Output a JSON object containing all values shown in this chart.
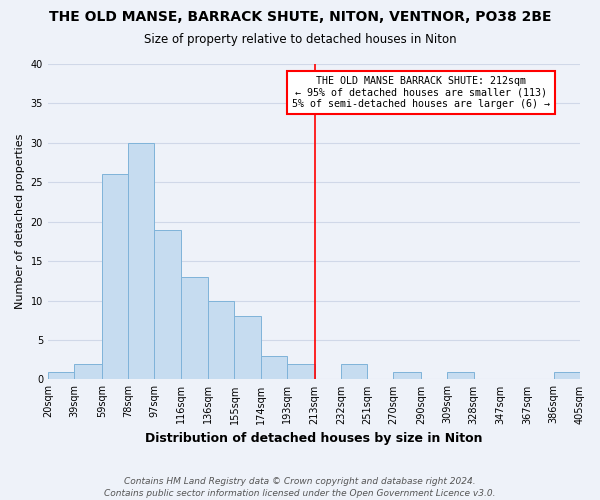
{
  "title": "THE OLD MANSE, BARRACK SHUTE, NITON, VENTNOR, PO38 2BE",
  "subtitle": "Size of property relative to detached houses in Niton",
  "xlabel": "Distribution of detached houses by size in Niton",
  "ylabel": "Number of detached properties",
  "bin_edges": [
    20,
    39,
    59,
    78,
    97,
    116,
    136,
    155,
    174,
    193,
    213,
    232,
    251,
    270,
    290,
    309,
    328,
    347,
    367,
    386,
    405
  ],
  "bin_counts": [
    1,
    2,
    26,
    30,
    19,
    13,
    10,
    8,
    3,
    2,
    0,
    2,
    0,
    1,
    0,
    1,
    0,
    0,
    0,
    1
  ],
  "bar_color": "#c6dcf0",
  "bar_edge_color": "#7fb3d9",
  "reference_line_x": 213,
  "reference_line_color": "red",
  "annotation_line1": "THE OLD MANSE BARRACK SHUTE: 212sqm",
  "annotation_line2": "← 95% of detached houses are smaller (113)",
  "annotation_line3": "5% of semi-detached houses are larger (6) →",
  "annotation_box_color": "white",
  "annotation_box_edge_color": "red",
  "ylim": [
    0,
    40
  ],
  "yticks": [
    0,
    5,
    10,
    15,
    20,
    25,
    30,
    35,
    40
  ],
  "footnote_line1": "Contains HM Land Registry data © Crown copyright and database right 2024.",
  "footnote_line2": "Contains public sector information licensed under the Open Government Licence v3.0.",
  "bg_color": "#eef2f9",
  "grid_color": "#d0d8e8",
  "title_fontsize": 10,
  "subtitle_fontsize": 8.5,
  "xlabel_fontsize": 9,
  "ylabel_fontsize": 8,
  "tick_fontsize": 7,
  "footnote_fontsize": 6.5
}
